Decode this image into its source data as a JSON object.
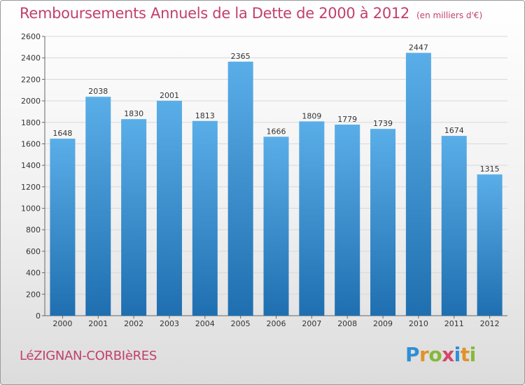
{
  "header": {
    "title": "Remboursements Annuels de la Dette de 2000 à 2012",
    "unit": "(en milliers d'€)"
  },
  "commune": "LéZIGNAN-CORBIèRES",
  "logo": {
    "parts": [
      "P",
      "r",
      "o",
      "x",
      "i",
      "t",
      "i"
    ]
  },
  "chart_data": {
    "type": "bar",
    "title": "Remboursements Annuels de la Dette de 2000 à 2012",
    "subtitle": "(en milliers d'€)",
    "categories": [
      "2000",
      "2001",
      "2002",
      "2003",
      "2004",
      "2005",
      "2006",
      "2007",
      "2008",
      "2009",
      "2010",
      "2011",
      "2012"
    ],
    "values": [
      1648,
      2038,
      1830,
      2001,
      1813,
      2365,
      1666,
      1809,
      1779,
      1739,
      2447,
      1674,
      1315
    ],
    "value_labels": [
      "1648",
      "2038",
      "1830",
      "2001",
      "1813",
      "2365",
      "1666",
      "1809",
      "1779",
      "1739",
      "2447",
      "1674",
      "1315"
    ],
    "ylim": [
      0,
      2600
    ],
    "yticks": [
      0,
      200,
      400,
      600,
      800,
      1000,
      1200,
      1400,
      1600,
      1800,
      2000,
      2200,
      2400,
      2600
    ],
    "ytick_labels": [
      "0",
      "200",
      "400",
      "600",
      "800",
      "1000",
      "1200",
      "1400",
      "1600",
      "1800",
      "2000",
      "2200",
      "2400",
      "2600"
    ],
    "xlabel": "",
    "ylabel": "",
    "grid": true,
    "legend": "none",
    "bar_color_top": "#5aaee8",
    "bar_color_bottom": "#1f6fb0"
  }
}
